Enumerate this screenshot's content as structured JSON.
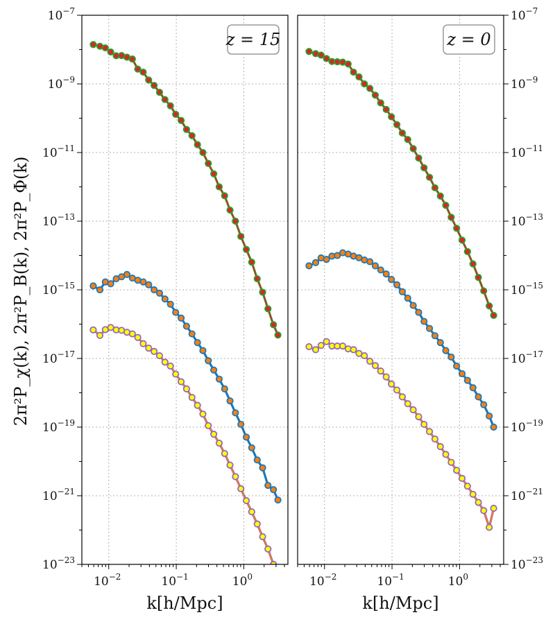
{
  "chart_data": [
    {
      "type": "line",
      "panel": "left",
      "annotation": "z = 15",
      "xlabel": "k[h/Mpc]",
      "ylabel": "2π²P_χ(k), 2π²P_B(k), 2π²P_Φ(k)",
      "xscale": "log",
      "yscale": "log",
      "xlim": [
        0.004,
        4.5
      ],
      "ylim": [
        1e-23,
        1e-07
      ],
      "grid": true,
      "x": [
        0.0059,
        0.0074,
        0.0089,
        0.0107,
        0.0129,
        0.0155,
        0.0186,
        0.0224,
        0.0269,
        0.0324,
        0.039,
        0.047,
        0.0565,
        0.068,
        0.082,
        0.098,
        0.118,
        0.142,
        0.171,
        0.206,
        0.248,
        0.298,
        0.359,
        0.432,
        0.52,
        0.625,
        0.752,
        0.905,
        1.09,
        1.31,
        1.58,
        1.9,
        2.28,
        2.75,
        3.2
      ],
      "series": [
        {
          "name": "",
          "line_color": "#d62728",
          "marker_face": "#d62728",
          "marker_edge": "#2ca02c",
          "values": [
            1.4e-08,
            1.25e-08,
            1.12e-08,
            8.5e-09,
            6.6e-09,
            6.7e-09,
            6e-09,
            5.3e-09,
            2.7e-09,
            2.2e-09,
            1.3e-09,
            9e-10,
            5.7e-10,
            3.5e-10,
            2.3e-10,
            1.3e-10,
            8.6e-11,
            4.7e-11,
            3.1e-11,
            1.7e-11,
            1e-11,
            4.8e-12,
            2.4e-12,
            1e-12,
            5.5e-13,
            2.1e-13,
            1e-13,
            3.6e-14,
            1.5e-14,
            6.4e-15,
            2.1e-15,
            8.5e-16,
            2.8e-16,
            9.6e-17,
            4.8e-17
          ]
        },
        {
          "name": "",
          "line_color": "#1f77b4",
          "marker_face": "#ff7f0e",
          "marker_edge": "#1f77b4",
          "values": [
            1.3e-15,
            1e-15,
            1.7e-15,
            1.5e-15,
            2.1e-15,
            2.4e-15,
            2.8e-15,
            2.2e-15,
            1.9e-15,
            1.7e-15,
            1.4e-15,
            1e-15,
            8e-16,
            5.4e-16,
            3.8e-16,
            2.2e-16,
            1.5e-16,
            8.7e-17,
            5.2e-17,
            2.9e-17,
            1.7e-17,
            8.6e-18,
            4.6e-18,
            2.5e-18,
            1.3e-18,
            5.8e-19,
            2.6e-19,
            1.2e-19,
            5.1e-20,
            2.5e-20,
            1.1e-20,
            6.5e-21,
            2e-21,
            1.5e-21,
            7.5e-22
          ]
        },
        {
          "name": "",
          "line_color": "#ff7f0e",
          "marker_face": "#ffff00",
          "marker_edge": "#9467bd",
          "values": [
            6.8e-17,
            4.7e-17,
            6.9e-17,
            8e-17,
            6.8e-17,
            6.6e-17,
            5.8e-17,
            5.2e-17,
            4.1e-17,
            2.7e-17,
            2e-17,
            1.6e-17,
            1.2e-17,
            7.8e-18,
            6e-18,
            3.5e-18,
            2.1e-18,
            1.3e-18,
            7.3e-19,
            4.3e-19,
            2.4e-19,
            1.1e-19,
            6.2e-20,
            3.4e-20,
            1.7e-20,
            7.8e-21,
            3.6e-21,
            1.6e-21,
            7.2e-22,
            3.4e-22,
            1.5e-22,
            6.4e-23,
            2.8e-23,
            1e-23,
            5e-24
          ]
        }
      ]
    },
    {
      "type": "line",
      "panel": "right",
      "annotation": "z = 0",
      "xlabel": "k[h/Mpc]",
      "xscale": "log",
      "yscale": "log",
      "xlim": [
        0.004,
        4.5
      ],
      "ylim": [
        1e-23,
        1e-07
      ],
      "grid": true,
      "x": [
        0.0059,
        0.0074,
        0.0089,
        0.0107,
        0.0129,
        0.0155,
        0.0186,
        0.0224,
        0.0269,
        0.0324,
        0.039,
        0.047,
        0.0565,
        0.068,
        0.082,
        0.098,
        0.118,
        0.142,
        0.171,
        0.206,
        0.248,
        0.298,
        0.359,
        0.432,
        0.52,
        0.625,
        0.752,
        0.905,
        1.09,
        1.31,
        1.58,
        1.9,
        2.28,
        2.75,
        3.2
      ],
      "series": [
        {
          "name": "",
          "line_color": "#d62728",
          "marker_face": "#d62728",
          "marker_edge": "#2ca02c",
          "values": [
            8.8e-09,
            7.6e-09,
            6.9e-09,
            5.5e-09,
            4.5e-09,
            4.4e-09,
            4.3e-09,
            3.8e-09,
            2.2e-09,
            1.6e-09,
            1e-09,
            7.4e-10,
            4.7e-10,
            2.8e-10,
            1.8e-10,
            1.1e-10,
            6.5e-11,
            3.7e-11,
            2.4e-11,
            1.3e-11,
            6.9e-12,
            3.6e-12,
            1.9e-12,
            9.4e-13,
            5.4e-13,
            2.9e-13,
            1.3e-13,
            6.2e-14,
            2.8e-14,
            1.3e-14,
            5.7e-15,
            2.3e-15,
            9.3e-16,
            3.4e-16,
            1.8e-16
          ]
        },
        {
          "name": "",
          "line_color": "#1f77b4",
          "marker_face": "#ff7f0e",
          "marker_edge": "#1f77b4",
          "values": [
            5e-15,
            6.2e-15,
            8.5e-15,
            7.7e-15,
            9.6e-15,
            1e-14,
            1.2e-14,
            1.1e-14,
            9.6e-15,
            8.6e-15,
            7.4e-15,
            6.6e-15,
            5e-15,
            3.8e-15,
            2.9e-15,
            2e-15,
            1.4e-15,
            8.8e-16,
            5.7e-16,
            3.5e-16,
            2.2e-16,
            1.2e-16,
            7.5e-17,
            4.6e-17,
            2.9e-17,
            1.7e-17,
            1.1e-17,
            6e-18,
            3.6e-18,
            2.3e-18,
            1.4e-18,
            7.6e-19,
            4.5e-19,
            2.1e-19,
            1e-19
          ]
        },
        {
          "name": "",
          "line_color": "#ff7f0e",
          "marker_face": "#ffff00",
          "marker_edge": "#9467bd",
          "values": [
            2.2e-17,
            1.8e-17,
            2.4e-17,
            3.1e-17,
            2.3e-17,
            2.3e-17,
            2.3e-17,
            1.9e-17,
            1.8e-17,
            1.4e-17,
            1.2e-17,
            8.3e-18,
            6.2e-18,
            4.3e-18,
            2.9e-18,
            1.8e-18,
            1.2e-18,
            7.6e-19,
            4.8e-19,
            3.2e-19,
            2e-19,
            1.2e-19,
            7.4e-20,
            4.5e-20,
            2.7e-20,
            1.6e-20,
            9.4e-21,
            5.5e-21,
            3.2e-21,
            1.9e-21,
            1.1e-21,
            6.4e-22,
            3.7e-22,
            1.2e-22,
            4.3e-22
          ]
        }
      ]
    }
  ]
}
